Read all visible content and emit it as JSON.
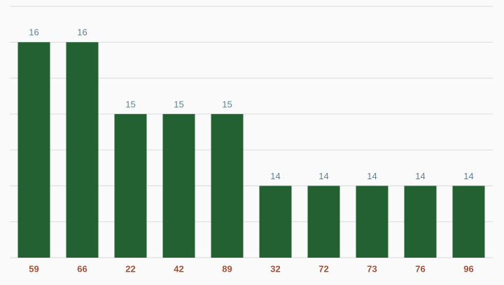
{
  "chart_data": {
    "type": "bar",
    "categories": [
      "59",
      "66",
      "22",
      "42",
      "89",
      "32",
      "72",
      "73",
      "76",
      "96"
    ],
    "values": [
      16,
      16,
      15,
      15,
      15,
      14,
      14,
      14,
      14,
      14
    ],
    "color": "#236133",
    "ylim": [
      13,
      16.5
    ],
    "yticks": [
      13,
      13.5,
      14,
      14.5,
      15,
      15.5,
      16,
      16.5
    ],
    "grid": true
  }
}
